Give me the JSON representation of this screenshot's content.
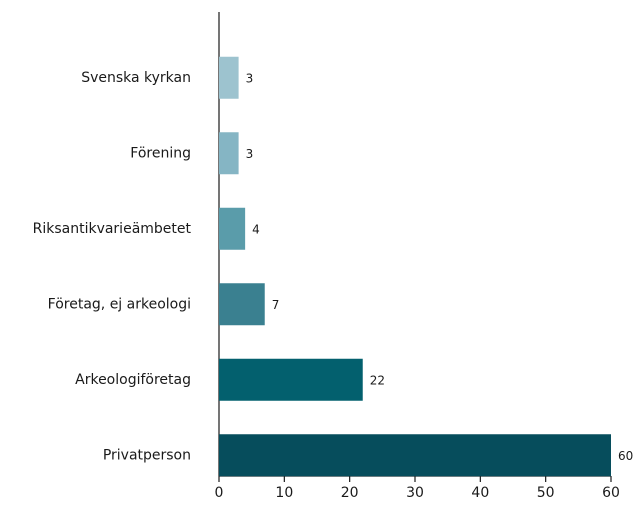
{
  "chart_data": {
    "type": "barh",
    "categories": [
      "Svenska kyrkan",
      "Förening",
      "Riksantikvarieämbetet",
      "Företag, ej arkeologi",
      "Arkeologiföretag",
      "Privatperson"
    ],
    "values": [
      3,
      3,
      4,
      7,
      22,
      60
    ],
    "colors": [
      "#9dc3cf",
      "#85b5c4",
      "#5a9caa",
      "#3a8090",
      "#03606e",
      "#064d5c"
    ],
    "xlim": [
      0,
      60
    ],
    "xticks": [
      0,
      10,
      20,
      30,
      40,
      50,
      60
    ],
    "grid": false
  }
}
